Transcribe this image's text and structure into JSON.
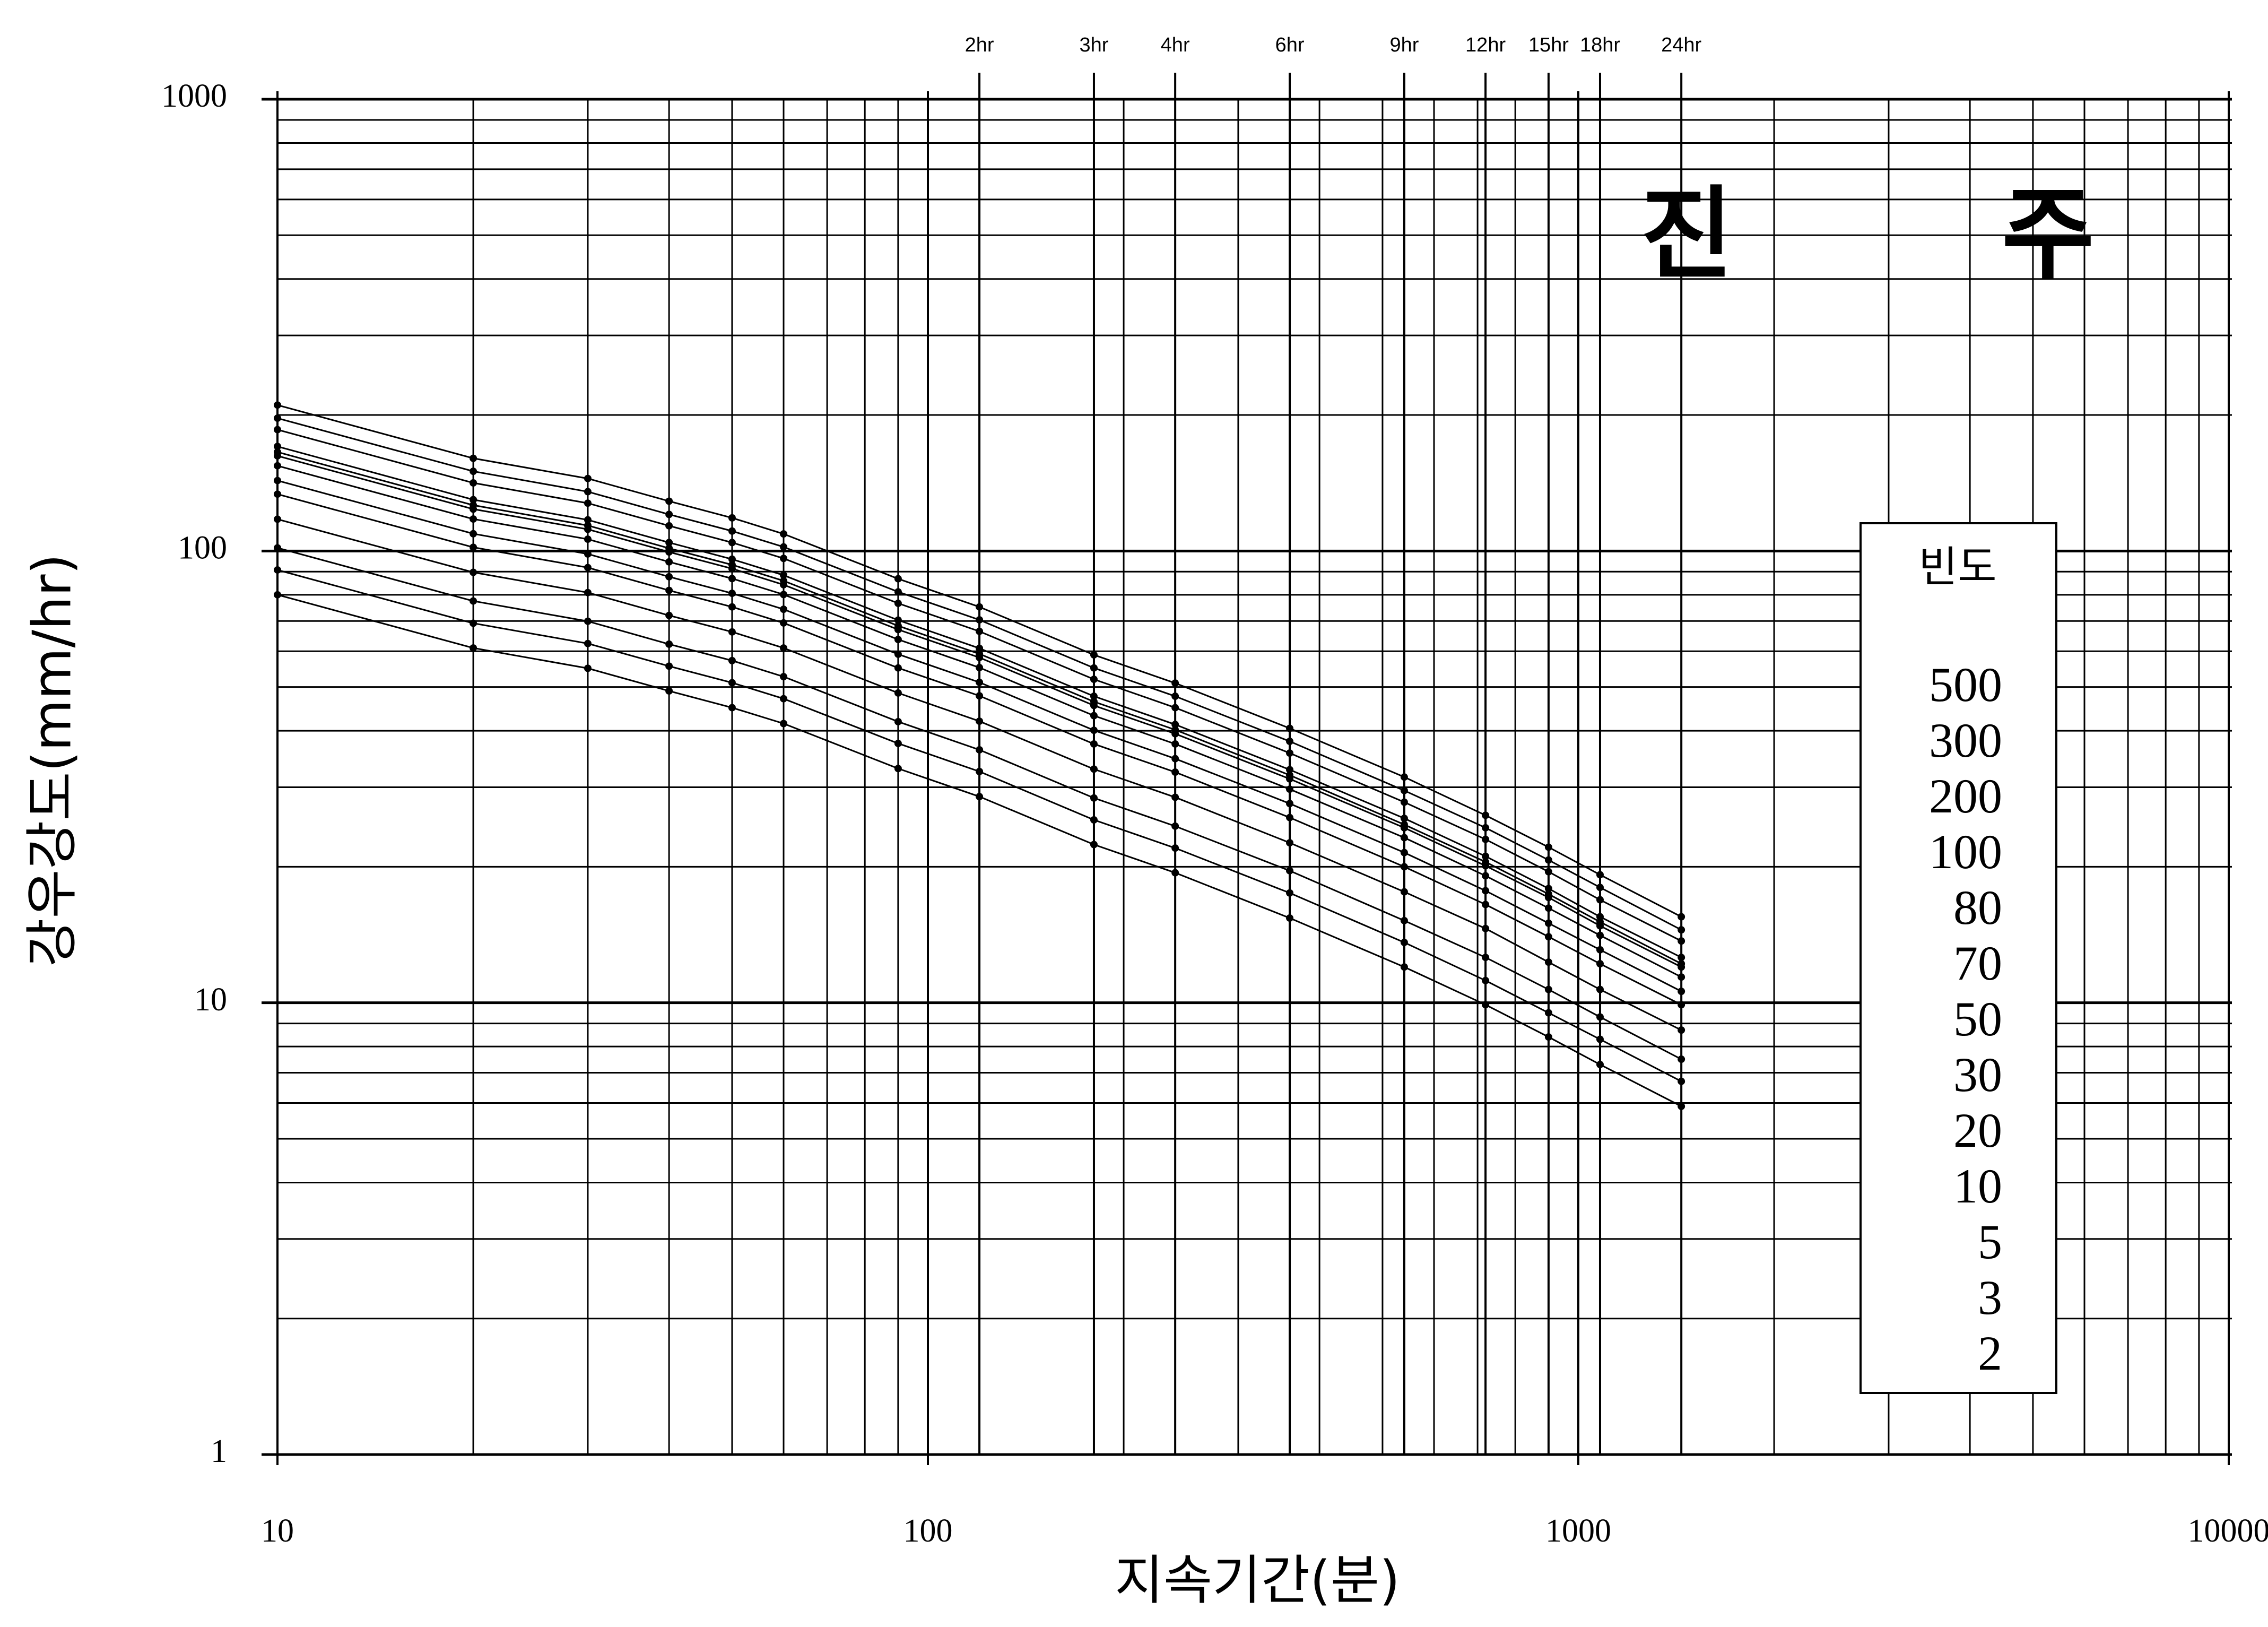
{
  "chart_data": {
    "type": "line",
    "title": "진 주",
    "x_label": "지속기간(분)",
    "y_label": "강우강도(mm/hr)",
    "xscale": "log",
    "yscale": "log",
    "grid": true,
    "minor_grid": true,
    "markers": true,
    "legend_title": "빈도",
    "legend_position": "right",
    "xlim": [
      10,
      10000
    ],
    "ylim": [
      1,
      1000
    ],
    "xticks": [
      10,
      100,
      1000,
      10000
    ],
    "yticks": [
      1,
      10,
      100,
      1000
    ],
    "x2ticks": [
      {
        "value": 120,
        "label": "2hr"
      },
      {
        "value": 180,
        "label": "3hr"
      },
      {
        "value": 240,
        "label": "4hr"
      },
      {
        "value": 360,
        "label": "6hr"
      },
      {
        "value": 540,
        "label": "9hr"
      },
      {
        "value": 720,
        "label": "12hr"
      },
      {
        "value": 900,
        "label": "15hr"
      },
      {
        "value": 1080,
        "label": "18hr"
      },
      {
        "value": 1440,
        "label": "24hr"
      }
    ],
    "x": [
      10,
      20,
      30,
      40,
      50,
      60,
      90,
      120,
      180,
      240,
      360,
      540,
      720,
      900,
      1080,
      1440
    ],
    "series": [
      {
        "name": "500",
        "color": "#000000",
        "values": [
          210.4,
          160.4,
          144.7,
          128.9,
          118.4,
          109.1,
          86.8,
          75.2,
          58.9,
          51.0,
          40.5,
          31.6,
          26.0,
          22.1,
          19.2,
          15.5
        ]
      },
      {
        "name": "300",
        "color": "#000000",
        "values": [
          196.8,
          150.1,
          135.3,
          120.5,
          110.7,
          102.1,
          81.2,
          70.4,
          55.1,
          47.7,
          37.9,
          29.5,
          24.4,
          20.7,
          18.0,
          14.5
        ]
      },
      {
        "name": "200",
        "color": "#000000",
        "values": [
          185.6,
          141.5,
          127.6,
          113.7,
          104.4,
          96.3,
          76.6,
          66.4,
          52.0,
          45.0,
          35.7,
          27.8,
          23.0,
          19.5,
          16.9,
          13.7
        ]
      },
      {
        "name": "100",
        "color": "#000000",
        "values": [
          170.4,
          129.9,
          117.2,
          104.4,
          95.9,
          88.4,
          70.3,
          60.9,
          47.7,
          41.3,
          32.8,
          25.6,
          21.1,
          17.9,
          15.5,
          12.6
        ]
      },
      {
        "name": "80",
        "color": "#000000",
        "values": [
          165.6,
          126.3,
          113.9,
          101.4,
          93.2,
          85.9,
          68.3,
          59.2,
          46.4,
          40.2,
          31.9,
          24.8,
          20.5,
          17.4,
          15.1,
          12.2
        ]
      },
      {
        "name": "70",
        "color": "#000000",
        "values": [
          162.4,
          123.8,
          111.7,
          99.5,
          91.4,
          84.2,
          67.0,
          58.1,
          45.5,
          39.4,
          31.3,
          24.4,
          20.1,
          17.1,
          14.8,
          12.0
        ]
      },
      {
        "name": "50",
        "color": "#000000",
        "values": [
          154.4,
          117.7,
          106.2,
          94.6,
          86.9,
          80.1,
          63.7,
          55.2,
          43.2,
          37.4,
          29.7,
          23.2,
          19.1,
          16.2,
          14.1,
          11.4
        ]
      },
      {
        "name": "30",
        "color": "#000000",
        "values": [
          143.2,
          109.2,
          98.5,
          87.7,
          80.6,
          74.3,
          59.1,
          51.2,
          40.1,
          34.7,
          27.6,
          21.5,
          17.7,
          15.0,
          13.1,
          10.6
        ]
      },
      {
        "name": "20",
        "color": "#000000",
        "values": [
          133.6,
          101.9,
          91.9,
          81.8,
          75.2,
          69.3,
          55.1,
          47.8,
          37.4,
          32.4,
          25.7,
          20.0,
          16.5,
          14.0,
          12.2,
          9.9
        ]
      },
      {
        "name": "10",
        "color": "#000000",
        "values": [
          117.6,
          89.7,
          80.9,
          72.0,
          66.2,
          61.0,
          48.5,
          42.0,
          32.9,
          28.5,
          22.6,
          17.6,
          14.6,
          12.3,
          10.7,
          8.7
        ]
      },
      {
        "name": "5",
        "color": "#000000",
        "values": [
          101.6,
          77.5,
          69.9,
          62.2,
          57.2,
          52.7,
          41.9,
          36.3,
          28.4,
          24.6,
          19.6,
          15.2,
          12.6,
          10.7,
          9.3,
          7.5
        ]
      },
      {
        "name": "3",
        "color": "#000000",
        "values": [
          90.8,
          69.2,
          62.4,
          55.6,
          51.1,
          47.1,
          37.5,
          32.5,
          25.4,
          22.0,
          17.5,
          13.6,
          11.2,
          9.5,
          8.3,
          6.7
        ]
      },
      {
        "name": "2",
        "color": "#000000",
        "values": [
          80,
          61,
          55,
          49,
          45,
          41.5,
          33,
          28.6,
          22.4,
          19.4,
          15.4,
          12,
          9.9,
          8.4,
          7.3,
          5.9
        ]
      }
    ]
  }
}
